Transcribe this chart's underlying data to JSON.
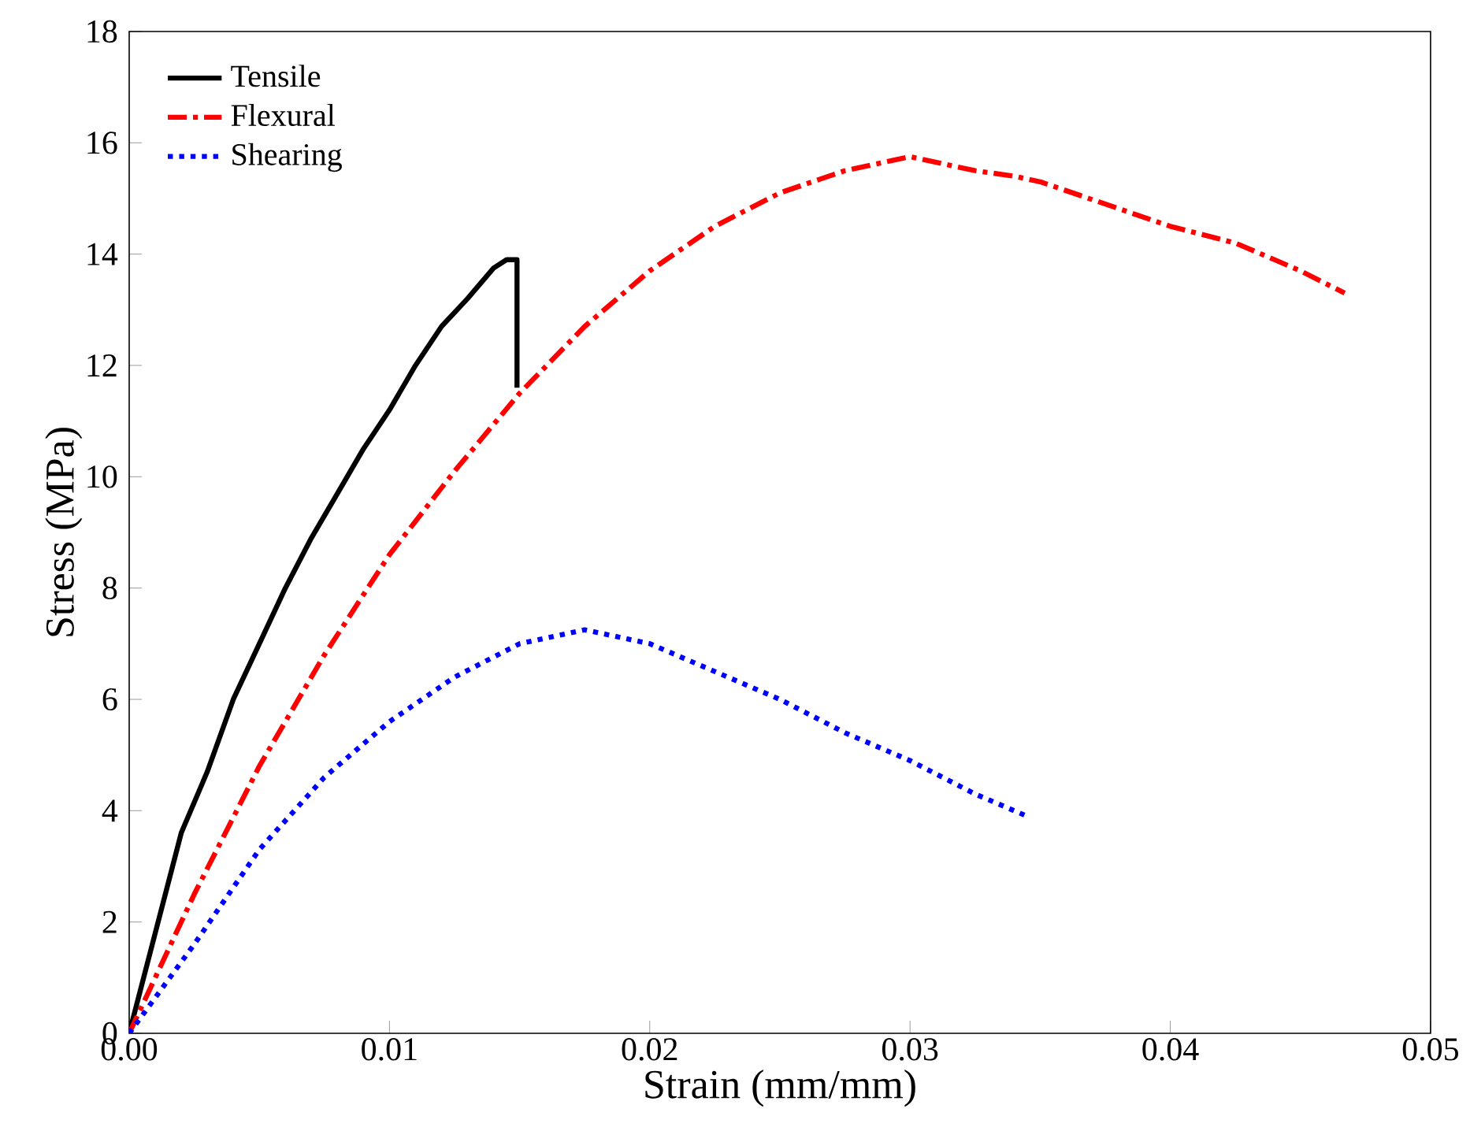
{
  "chart_data": {
    "type": "line",
    "xlabel": "Strain (mm/mm)",
    "ylabel": "Stress (MPa)",
    "xlim": [
      0,
      0.05
    ],
    "ylim": [
      0,
      18
    ],
    "xticks": [
      {
        "value": 0,
        "label": "0.00"
      },
      {
        "value": 0.01,
        "label": "0.01"
      },
      {
        "value": 0.02,
        "label": "0.02"
      },
      {
        "value": 0.03,
        "label": "0.03"
      },
      {
        "value": 0.04,
        "label": "0.04"
      },
      {
        "value": 0.05,
        "label": "0.05"
      }
    ],
    "yticks": [
      0,
      2,
      4,
      6,
      8,
      10,
      12,
      14,
      16,
      18
    ],
    "legend": "top left",
    "grid": false,
    "marker": "none",
    "series": [
      {
        "name": "Tensile",
        "color": "#000000",
        "line_style": "solid",
        "x": [
          0,
          0.001,
          0.002,
          0.003,
          0.004,
          0.005,
          0.006,
          0.007,
          0.008,
          0.009,
          0.01,
          0.011,
          0.012,
          0.013,
          0.014,
          0.0145,
          0.0149,
          0.0149
        ],
        "values": [
          0,
          1.8,
          3.6,
          4.7,
          6.0,
          7.0,
          8.0,
          8.9,
          9.7,
          10.5,
          11.2,
          12.0,
          12.7,
          13.2,
          13.75,
          13.9,
          13.9,
          11.6
        ]
      },
      {
        "name": "Flexural",
        "color": "#ff0000",
        "line_style": "dashdot",
        "x": [
          0,
          0.0025,
          0.005,
          0.0075,
          0.01,
          0.0125,
          0.015,
          0.0175,
          0.02,
          0.0225,
          0.025,
          0.0275,
          0.03,
          0.0325,
          0.034,
          0.035,
          0.0375,
          0.04,
          0.0425,
          0.045,
          0.0467
        ],
        "values": [
          0,
          2.5,
          4.8,
          6.8,
          8.6,
          10.1,
          11.5,
          12.7,
          13.7,
          14.5,
          15.1,
          15.5,
          15.75,
          15.5,
          15.4,
          15.3,
          14.9,
          14.5,
          14.2,
          13.7,
          13.3
        ]
      },
      {
        "name": "Shearing",
        "color": "#0000ff",
        "line_style": "dotted",
        "x": [
          0,
          0.0025,
          0.005,
          0.0075,
          0.01,
          0.0125,
          0.015,
          0.0175,
          0.02,
          0.0225,
          0.025,
          0.0275,
          0.03,
          0.0325,
          0.0345
        ],
        "values": [
          0,
          1.6,
          3.3,
          4.6,
          5.6,
          6.4,
          7.0,
          7.25,
          7.0,
          6.5,
          6.0,
          5.4,
          4.9,
          4.3,
          3.9
        ]
      }
    ]
  }
}
